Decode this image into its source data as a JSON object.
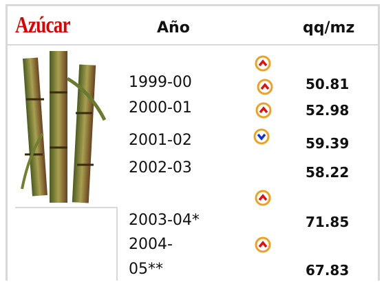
{
  "header": {
    "title": "Azúcar",
    "year_label": "Año",
    "value_label": "qq/mz"
  },
  "table": {
    "rows": [
      [
        "1999-00",
        "50.81"
      ],
      [
        "2000-01",
        "52.98"
      ],
      [
        "2001-02",
        "59.39"
      ],
      [
        "2002-03",
        "58.22"
      ],
      [
        "2003-04*",
        "71.85"
      ],
      [
        "2004-05**",
        "67.83"
      ]
    ]
  }
}
